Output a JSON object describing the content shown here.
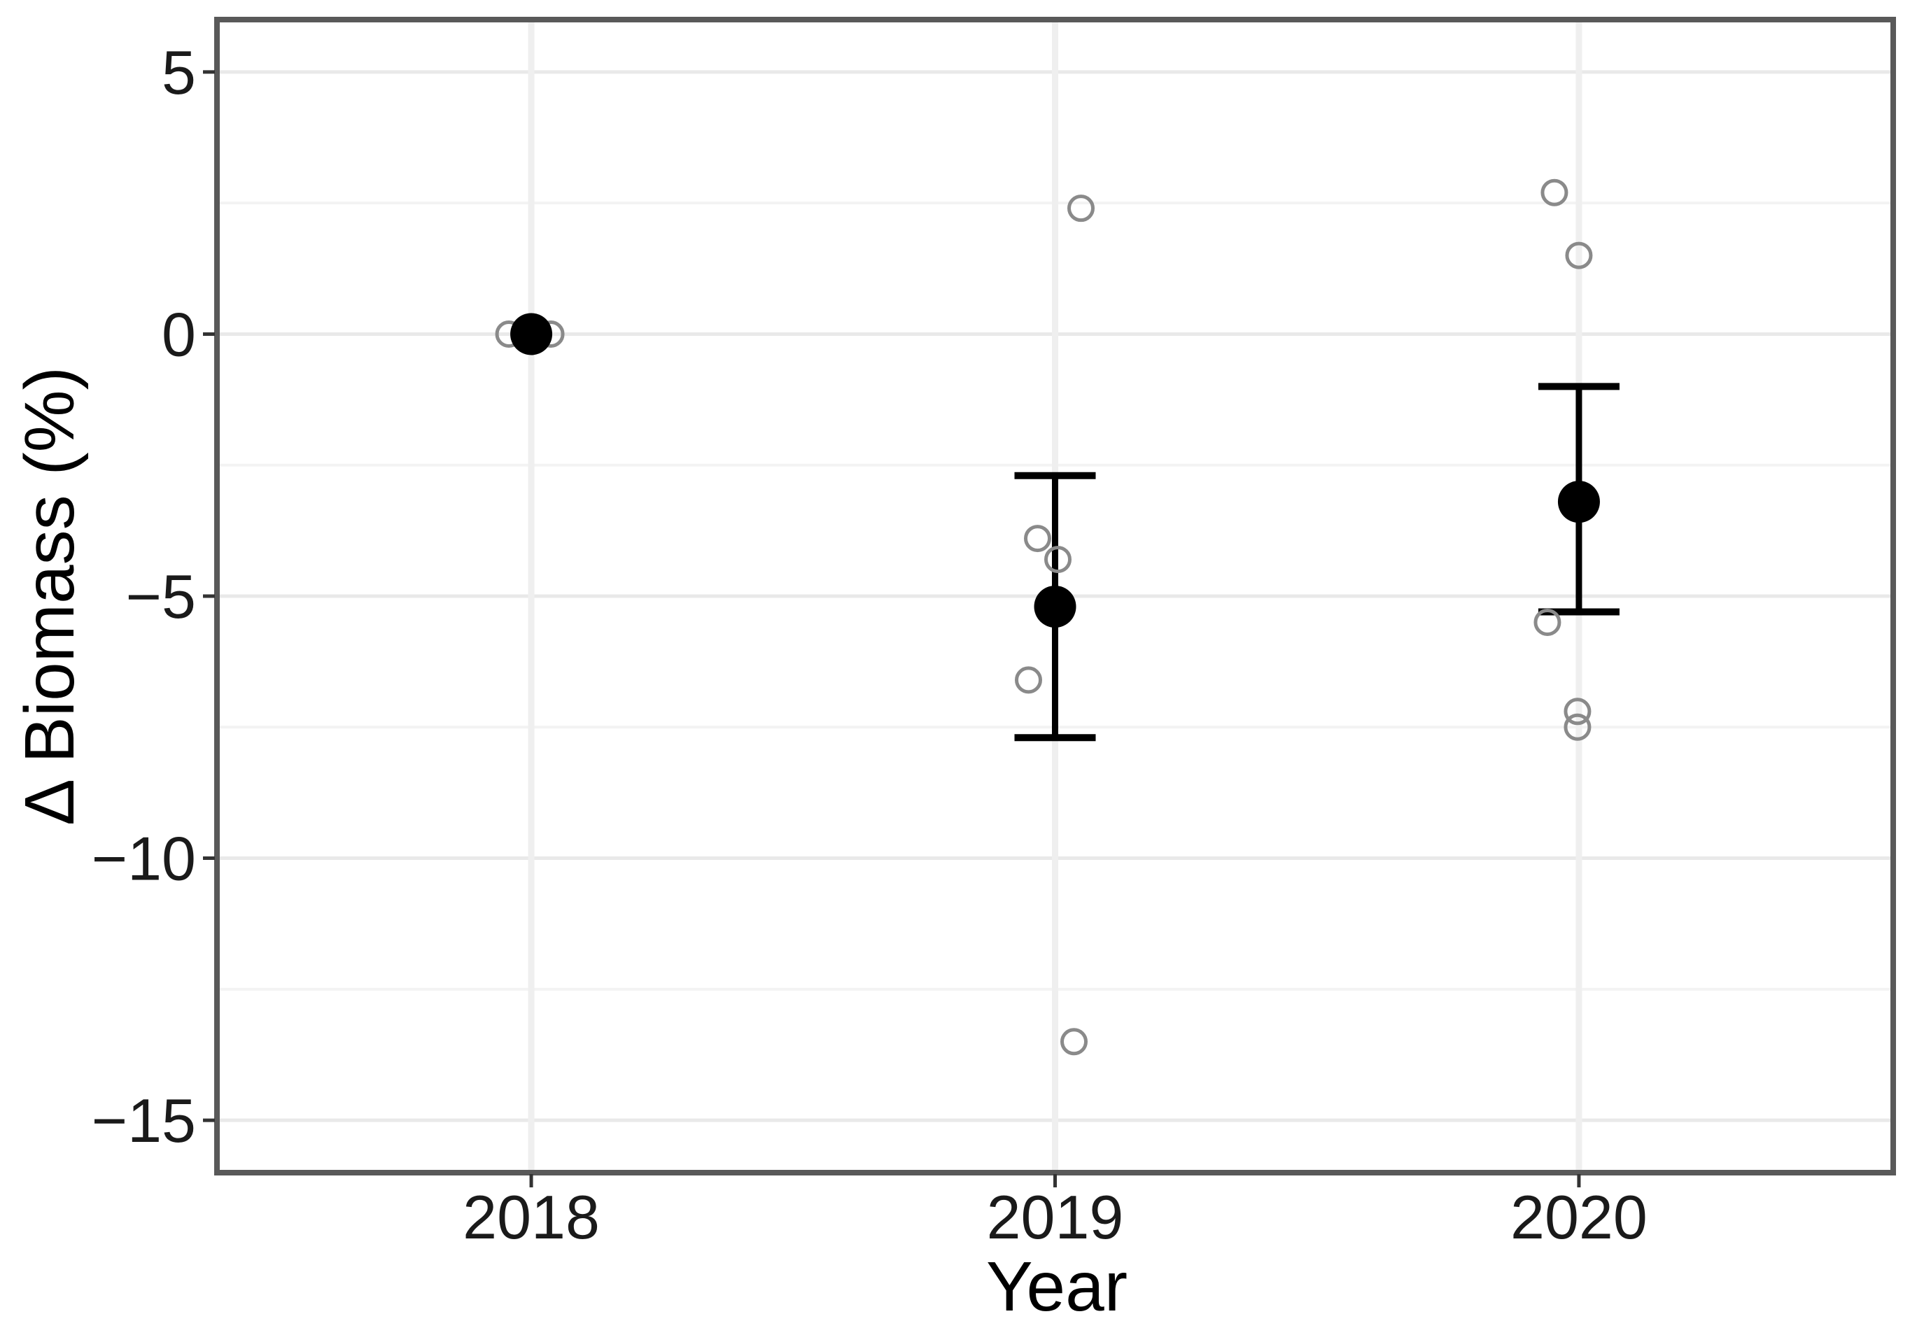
{
  "chart_data": {
    "type": "scatter",
    "title": "",
    "xlabel": "Year",
    "ylabel": "Δ Biomass (%)",
    "categories": [
      "2018",
      "2019",
      "2020"
    ],
    "ylim": [
      -16,
      6
    ],
    "grid": true,
    "legend_position": "none",
    "y_major_ticks": [
      {
        "label": "5",
        "value": 5
      },
      {
        "label": "0",
        "value": 0
      },
      {
        "label": "−5",
        "value": -5
      },
      {
        "label": "−10",
        "value": -10
      },
      {
        "label": "−15",
        "value": -15
      }
    ],
    "y_minor_gridlines": [
      2.5,
      -2.5,
      -7.5,
      -12.5
    ],
    "series": [
      {
        "name": "mean_with_95ci",
        "style": "pointrange",
        "points": [
          {
            "category": "2018",
            "mean": 0.0,
            "ci_low": null,
            "ci_high": null
          },
          {
            "category": "2019",
            "mean": -5.2,
            "ci_low": -7.7,
            "ci_high": -2.7
          },
          {
            "category": "2020",
            "mean": -3.2,
            "ci_low": -5.3,
            "ci_high": -1.0
          }
        ]
      },
      {
        "name": "individual_observations",
        "style": "jitter_open_circles",
        "points": [
          {
            "category": "2018",
            "value": 0.0,
            "jitter_x": -32
          },
          {
            "category": "2018",
            "value": 0.0,
            "jitter_x": 28
          },
          {
            "category": "2018",
            "value": 0.0,
            "jitter_x": -8
          },
          {
            "category": "2018",
            "value": 0.0,
            "jitter_x": 4
          },
          {
            "category": "2018",
            "value": 0.0,
            "jitter_x": 0
          },
          {
            "category": "2019",
            "value": 2.4,
            "jitter_x": 37
          },
          {
            "category": "2019",
            "value": -3.9,
            "jitter_x": -25
          },
          {
            "category": "2019",
            "value": -4.3,
            "jitter_x": 4
          },
          {
            "category": "2019",
            "value": -6.6,
            "jitter_x": -38
          },
          {
            "category": "2019",
            "value": -13.5,
            "jitter_x": 27
          },
          {
            "category": "2020",
            "value": 2.7,
            "jitter_x": -35
          },
          {
            "category": "2020",
            "value": 1.5,
            "jitter_x": 0
          },
          {
            "category": "2020",
            "value": -5.5,
            "jitter_x": -45
          },
          {
            "category": "2020",
            "value": -7.2,
            "jitter_x": -2
          },
          {
            "category": "2020",
            "value": -7.5,
            "jitter_x": -2
          }
        ]
      }
    ],
    "colors": {
      "mean_point": "#000000",
      "error_bar": "#000000",
      "observation_stroke": "#8a8a8a",
      "panel_border": "#595959",
      "grid_major": "#e9e9e9",
      "grid_minor": "#f3f3f3",
      "grid_vertical": "#efefef",
      "tick_mark": "#333333",
      "tick_label": "#1a1a1a",
      "axis_title": "#000000",
      "background": "#ffffff"
    }
  }
}
